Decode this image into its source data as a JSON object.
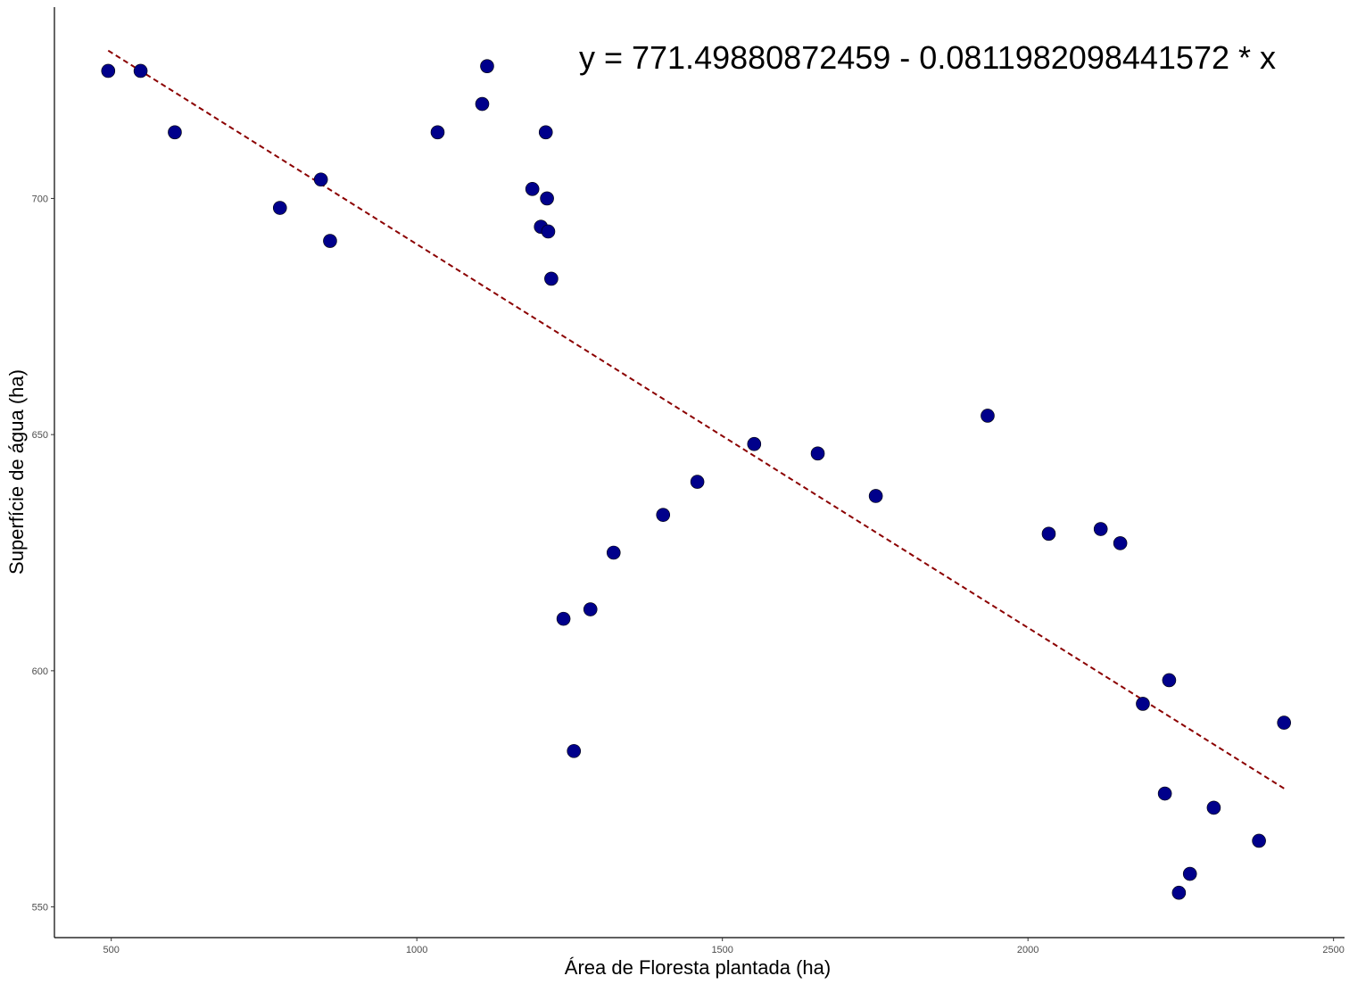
{
  "chart_data": {
    "type": "scatter",
    "xlabel": "Área de  Floresta plantada  (ha)",
    "ylabel": "Superfície de água (ha)",
    "annotation": "y = 771.49880872459 - 0.0811982098441572 * x",
    "xlim": [
      407,
      2518
    ],
    "ylim": [
      543.5,
      740.5
    ],
    "x_ticks": [
      500,
      1000,
      1500,
      2000,
      2500
    ],
    "y_ticks": [
      550,
      600,
      650,
      700
    ],
    "grid": false,
    "point_color": "#00008B",
    "trend_color": "#8B0000",
    "trend_style": "dashed",
    "trend": {
      "intercept": 771.49880872459,
      "slope": -0.0811982098441572,
      "x_range": [
        495,
        2420
      ]
    },
    "points": [
      {
        "x": 495,
        "y": 727
      },
      {
        "x": 548,
        "y": 727
      },
      {
        "x": 604,
        "y": 714
      },
      {
        "x": 776,
        "y": 698
      },
      {
        "x": 843,
        "y": 704
      },
      {
        "x": 858,
        "y": 691
      },
      {
        "x": 1034,
        "y": 714
      },
      {
        "x": 1107,
        "y": 720
      },
      {
        "x": 1115,
        "y": 728
      },
      {
        "x": 1189,
        "y": 702
      },
      {
        "x": 1203,
        "y": 694
      },
      {
        "x": 1211,
        "y": 714
      },
      {
        "x": 1213,
        "y": 700
      },
      {
        "x": 1215,
        "y": 693
      },
      {
        "x": 1220,
        "y": 683
      },
      {
        "x": 1240,
        "y": 611
      },
      {
        "x": 1257,
        "y": 583
      },
      {
        "x": 1284,
        "y": 613
      },
      {
        "x": 1322,
        "y": 625
      },
      {
        "x": 1403,
        "y": 633
      },
      {
        "x": 1459,
        "y": 640
      },
      {
        "x": 1552,
        "y": 648
      },
      {
        "x": 1656,
        "y": 646
      },
      {
        "x": 1751,
        "y": 637
      },
      {
        "x": 1934,
        "y": 654
      },
      {
        "x": 2034,
        "y": 629
      },
      {
        "x": 2119,
        "y": 630
      },
      {
        "x": 2151,
        "y": 627
      },
      {
        "x": 2188,
        "y": 593
      },
      {
        "x": 2224,
        "y": 574
      },
      {
        "x": 2231,
        "y": 598
      },
      {
        "x": 2247,
        "y": 553
      },
      {
        "x": 2265,
        "y": 557
      },
      {
        "x": 2304,
        "y": 571
      },
      {
        "x": 2378,
        "y": 564
      },
      {
        "x": 2419,
        "y": 589
      }
    ]
  }
}
